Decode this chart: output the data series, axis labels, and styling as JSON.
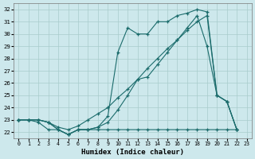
{
  "xlabel": "Humidex (Indice chaleur)",
  "background_color": "#cde8ec",
  "grid_color": "#a8cccc",
  "line_color": "#1a6b6b",
  "xlim": [
    -0.5,
    23.5
  ],
  "ylim": [
    21.5,
    32.5
  ],
  "xticks": [
    0,
    1,
    2,
    3,
    4,
    5,
    6,
    7,
    8,
    9,
    10,
    11,
    12,
    13,
    14,
    15,
    16,
    17,
    18,
    19,
    20,
    21,
    22,
    23
  ],
  "yticks": [
    22,
    23,
    24,
    25,
    26,
    27,
    28,
    29,
    30,
    31,
    32
  ],
  "line1_x": [
    0,
    1,
    2,
    3,
    4,
    5,
    6,
    7,
    8,
    9,
    10,
    11,
    12,
    13,
    14,
    15,
    16,
    17,
    18,
    19,
    20,
    21,
    22
  ],
  "line1_y": [
    23.0,
    23.0,
    23.0,
    22.8,
    22.2,
    21.8,
    22.2,
    22.2,
    22.4,
    23.3,
    28.5,
    30.5,
    30.0,
    30.0,
    31.0,
    31.0,
    31.5,
    31.7,
    32.0,
    31.8,
    25.0,
    24.5,
    22.2
  ],
  "line2_x": [
    0,
    1,
    2,
    3,
    4,
    5,
    6,
    7,
    8,
    9,
    10,
    11,
    12,
    13,
    14,
    15,
    16,
    17,
    18,
    19,
    20,
    21,
    22
  ],
  "line2_y": [
    23.0,
    23.0,
    23.0,
    22.8,
    22.2,
    21.8,
    22.2,
    22.2,
    22.4,
    22.8,
    23.8,
    25.0,
    26.3,
    26.5,
    27.5,
    28.5,
    29.5,
    30.5,
    31.5,
    29.0,
    25.0,
    24.5,
    22.2
  ],
  "line3_x": [
    0,
    1,
    2,
    3,
    4,
    5,
    6,
    7,
    8,
    9,
    10,
    11,
    12,
    13,
    14,
    15,
    16,
    17,
    18,
    19,
    20,
    21,
    22
  ],
  "line3_y": [
    23.0,
    23.0,
    22.8,
    22.2,
    22.2,
    21.8,
    22.2,
    22.2,
    22.2,
    22.2,
    22.2,
    22.2,
    22.2,
    22.2,
    22.2,
    22.2,
    22.2,
    22.2,
    22.2,
    22.2,
    22.2,
    22.2,
    22.2
  ],
  "line4_x": [
    0,
    1,
    2,
    3,
    4,
    5,
    6,
    7,
    8,
    9,
    10,
    11,
    12,
    13,
    14,
    15,
    16,
    17,
    18,
    19,
    20,
    21,
    22
  ],
  "line4_y": [
    23.0,
    23.0,
    23.0,
    22.8,
    22.4,
    22.2,
    22.5,
    23.0,
    23.5,
    24.0,
    24.8,
    25.5,
    26.3,
    27.2,
    28.0,
    28.8,
    29.5,
    30.3,
    31.0,
    31.5,
    25.0,
    24.5,
    22.2
  ]
}
